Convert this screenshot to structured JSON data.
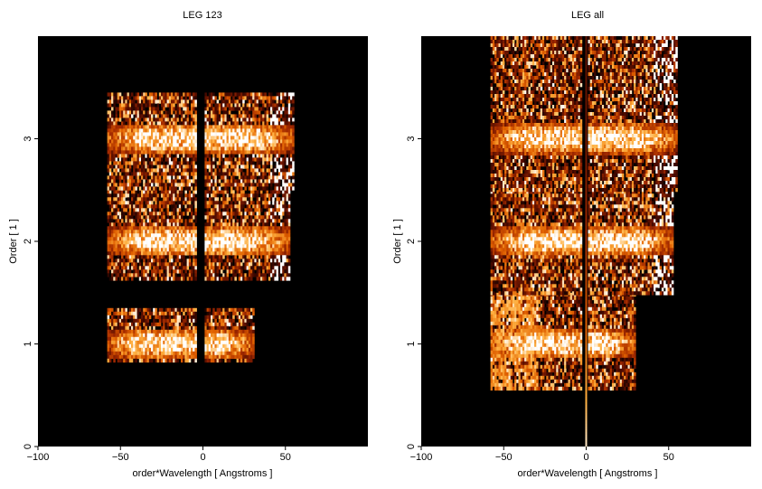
{
  "chart_data": [
    {
      "type": "heatmap",
      "title": "LEG 123",
      "xlabel": "order*Wavelength [ Angstroms ]",
      "ylabel": "Order [ 1 ]",
      "xlim": [
        -100,
        100
      ],
      "ylim": [
        0,
        4
      ],
      "xticks": [
        -100,
        -50,
        0,
        50
      ],
      "yticks": [
        0,
        1,
        2,
        3
      ],
      "xtick_labels": [
        "−100",
        "−50",
        "0",
        "50"
      ],
      "ytick_labels": [
        "0",
        "1",
        "2",
        "3"
      ],
      "background": "#000000",
      "colormap": [
        "#000000",
        "#4a0a00",
        "#a02800",
        "#e06000",
        "#ffb040",
        "#ffffff"
      ],
      "bands": [
        {
          "order": 1,
          "y_range": [
            0.85,
            1.35
          ],
          "x_range": [
            -58,
            30
          ],
          "gap": [
            -3,
            0
          ]
        },
        {
          "order": 2,
          "y_range": [
            1.65,
            2.5
          ],
          "x_range": [
            -58,
            52
          ],
          "gap": [
            -3,
            0
          ]
        },
        {
          "order": 3,
          "y_range": [
            2.5,
            3.45
          ],
          "x_range": [
            -58,
            55
          ],
          "gap": [
            -3,
            0
          ]
        }
      ]
    },
    {
      "type": "heatmap",
      "title": "LEG all",
      "xlabel": "order*Wavelength [ Angstroms ]",
      "ylabel": "Order [ 1 ]",
      "xlim": [
        -100,
        100
      ],
      "ylim": [
        0,
        4
      ],
      "xticks": [
        -100,
        -50,
        0,
        50
      ],
      "yticks": [
        0,
        1,
        2,
        3
      ],
      "xtick_labels": [
        "−100",
        "−50",
        "0",
        "50"
      ],
      "ytick_labels": [
        "0",
        "1",
        "2",
        "3"
      ],
      "background": "#000000",
      "colormap": [
        "#000000",
        "#4a0a00",
        "#a02800",
        "#e06000",
        "#ffb040",
        "#ffffff"
      ],
      "bands": [
        {
          "order": 1,
          "y_range": [
            0.55,
            1.5
          ],
          "x_range": [
            -58,
            30
          ],
          "gap": [
            -2,
            0
          ]
        },
        {
          "order": 2,
          "y_range": [
            1.5,
            2.5
          ],
          "x_range": [
            -58,
            52
          ],
          "gap": [
            -2,
            0
          ]
        },
        {
          "order": 3,
          "y_range": [
            2.5,
            4.0
          ],
          "x_range": [
            -58,
            55
          ],
          "gap": [
            -2,
            0
          ]
        }
      ]
    }
  ]
}
